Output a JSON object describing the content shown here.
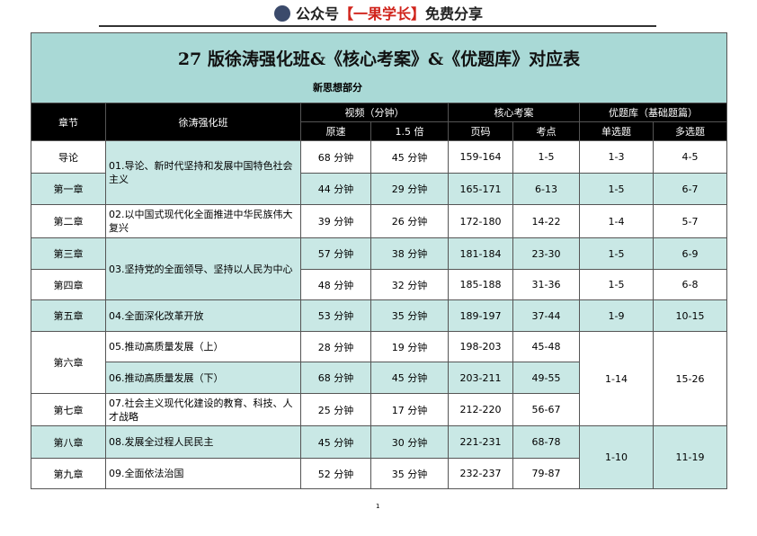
{
  "header": {
    "prefix": "公众号",
    "highlight": "【一果学长】",
    "suffix": "免费分享"
  },
  "title": "27 版徐涛强化班&《核心考案》&《优题库》对应表",
  "subtitle": "新思想部分",
  "table": {
    "columns": {
      "chapter": "章节",
      "course": "徐涛强化班",
      "video": "视频（分钟）",
      "original": "原速",
      "fast": "1.5 倍",
      "kaoan": "核心考案",
      "pages": "页码",
      "points": "考点",
      "tiku": "优题库（基础题篇）",
      "single": "单选题",
      "multi": "多选题"
    },
    "rows": [
      {
        "chapter": "导论",
        "course": "01.导论、新时代坚持和发展中国特色社会主义",
        "original": "68 分钟",
        "fast": "45 分钟",
        "pages": "159-164",
        "points": "1-5",
        "single": "1-3",
        "multi": "4-5"
      },
      {
        "chapter": "第一章",
        "original": "44 分钟",
        "fast": "29 分钟",
        "pages": "165-171",
        "points": "6-13",
        "single": "1-5",
        "multi": "6-7"
      },
      {
        "chapter": "第二章",
        "course": "02.以中国式现代化全面推进中华民族伟大复兴",
        "original": "39 分钟",
        "fast": "26 分钟",
        "pages": "172-180",
        "points": "14-22",
        "single": "1-4",
        "multi": "5-7"
      },
      {
        "chapter": "第三章",
        "course": "03.坚持党的全面领导、坚持以人民为中心",
        "original": "57 分钟",
        "fast": "38 分钟",
        "pages": "181-184",
        "points": "23-30",
        "single": "1-5",
        "multi": "6-9"
      },
      {
        "chapter": "第四章",
        "original": "48 分钟",
        "fast": "32 分钟",
        "pages": "185-188",
        "points": "31-36",
        "single": "1-5",
        "multi": "6-8"
      },
      {
        "chapter": "第五章",
        "course": "04.全面深化改革开放",
        "original": "53 分钟",
        "fast": "35 分钟",
        "pages": "189-197",
        "points": "37-44",
        "single": "1-9",
        "multi": "10-15"
      },
      {
        "chapter": "第六章",
        "course": "05.推动高质量发展（上）",
        "original": "28 分钟",
        "fast": "19 分钟",
        "pages": "198-203",
        "points": "45-48",
        "single": "1-14",
        "multi": "15-26"
      },
      {
        "course": "06.推动高质量发展（下）",
        "original": "68 分钟",
        "fast": "45 分钟",
        "pages": "203-211",
        "points": "49-55"
      },
      {
        "chapter": "第七章",
        "course": "07.社会主义现代化建设的教育、科技、人才战略",
        "original": "25 分钟",
        "fast": "17 分钟",
        "pages": "212-220",
        "points": "56-67"
      },
      {
        "chapter": "第八章",
        "course": "08.发展全过程人民民主",
        "original": "45 分钟",
        "fast": "30 分钟",
        "pages": "221-231",
        "points": "68-78",
        "single": "1-10",
        "multi": "11-19"
      },
      {
        "chapter": "第九章",
        "course": "09.全面依法治国",
        "original": "52 分钟",
        "fast": "35 分钟",
        "pages": "232-237",
        "points": "79-87"
      }
    ]
  },
  "page_number": "1"
}
